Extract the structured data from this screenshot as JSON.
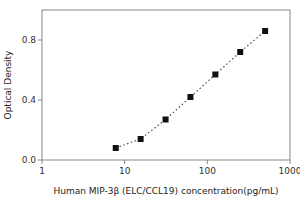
{
  "chart_data": {
    "type": "line",
    "x": [
      7.8,
      15.6,
      31.25,
      62.5,
      125,
      250,
      500
    ],
    "values": [
      0.08,
      0.14,
      0.27,
      0.42,
      0.57,
      0.72,
      0.86
    ],
    "xlabel": "Human MIP-3β (ELC/CCL19) concentration(pg/mL)",
    "ylabel": "Optical Density",
    "xlim": [
      1,
      1000
    ],
    "ylim": [
      0.0,
      1.0
    ],
    "xticks": [
      1,
      10,
      100,
      1000
    ],
    "yticks": [
      {
        "value": 0.0,
        "label": "0.0"
      },
      0.4,
      0.8
    ],
    "log": "x",
    "grid": false,
    "color": "#111111",
    "marker": "square",
    "line_style": "dotted"
  }
}
